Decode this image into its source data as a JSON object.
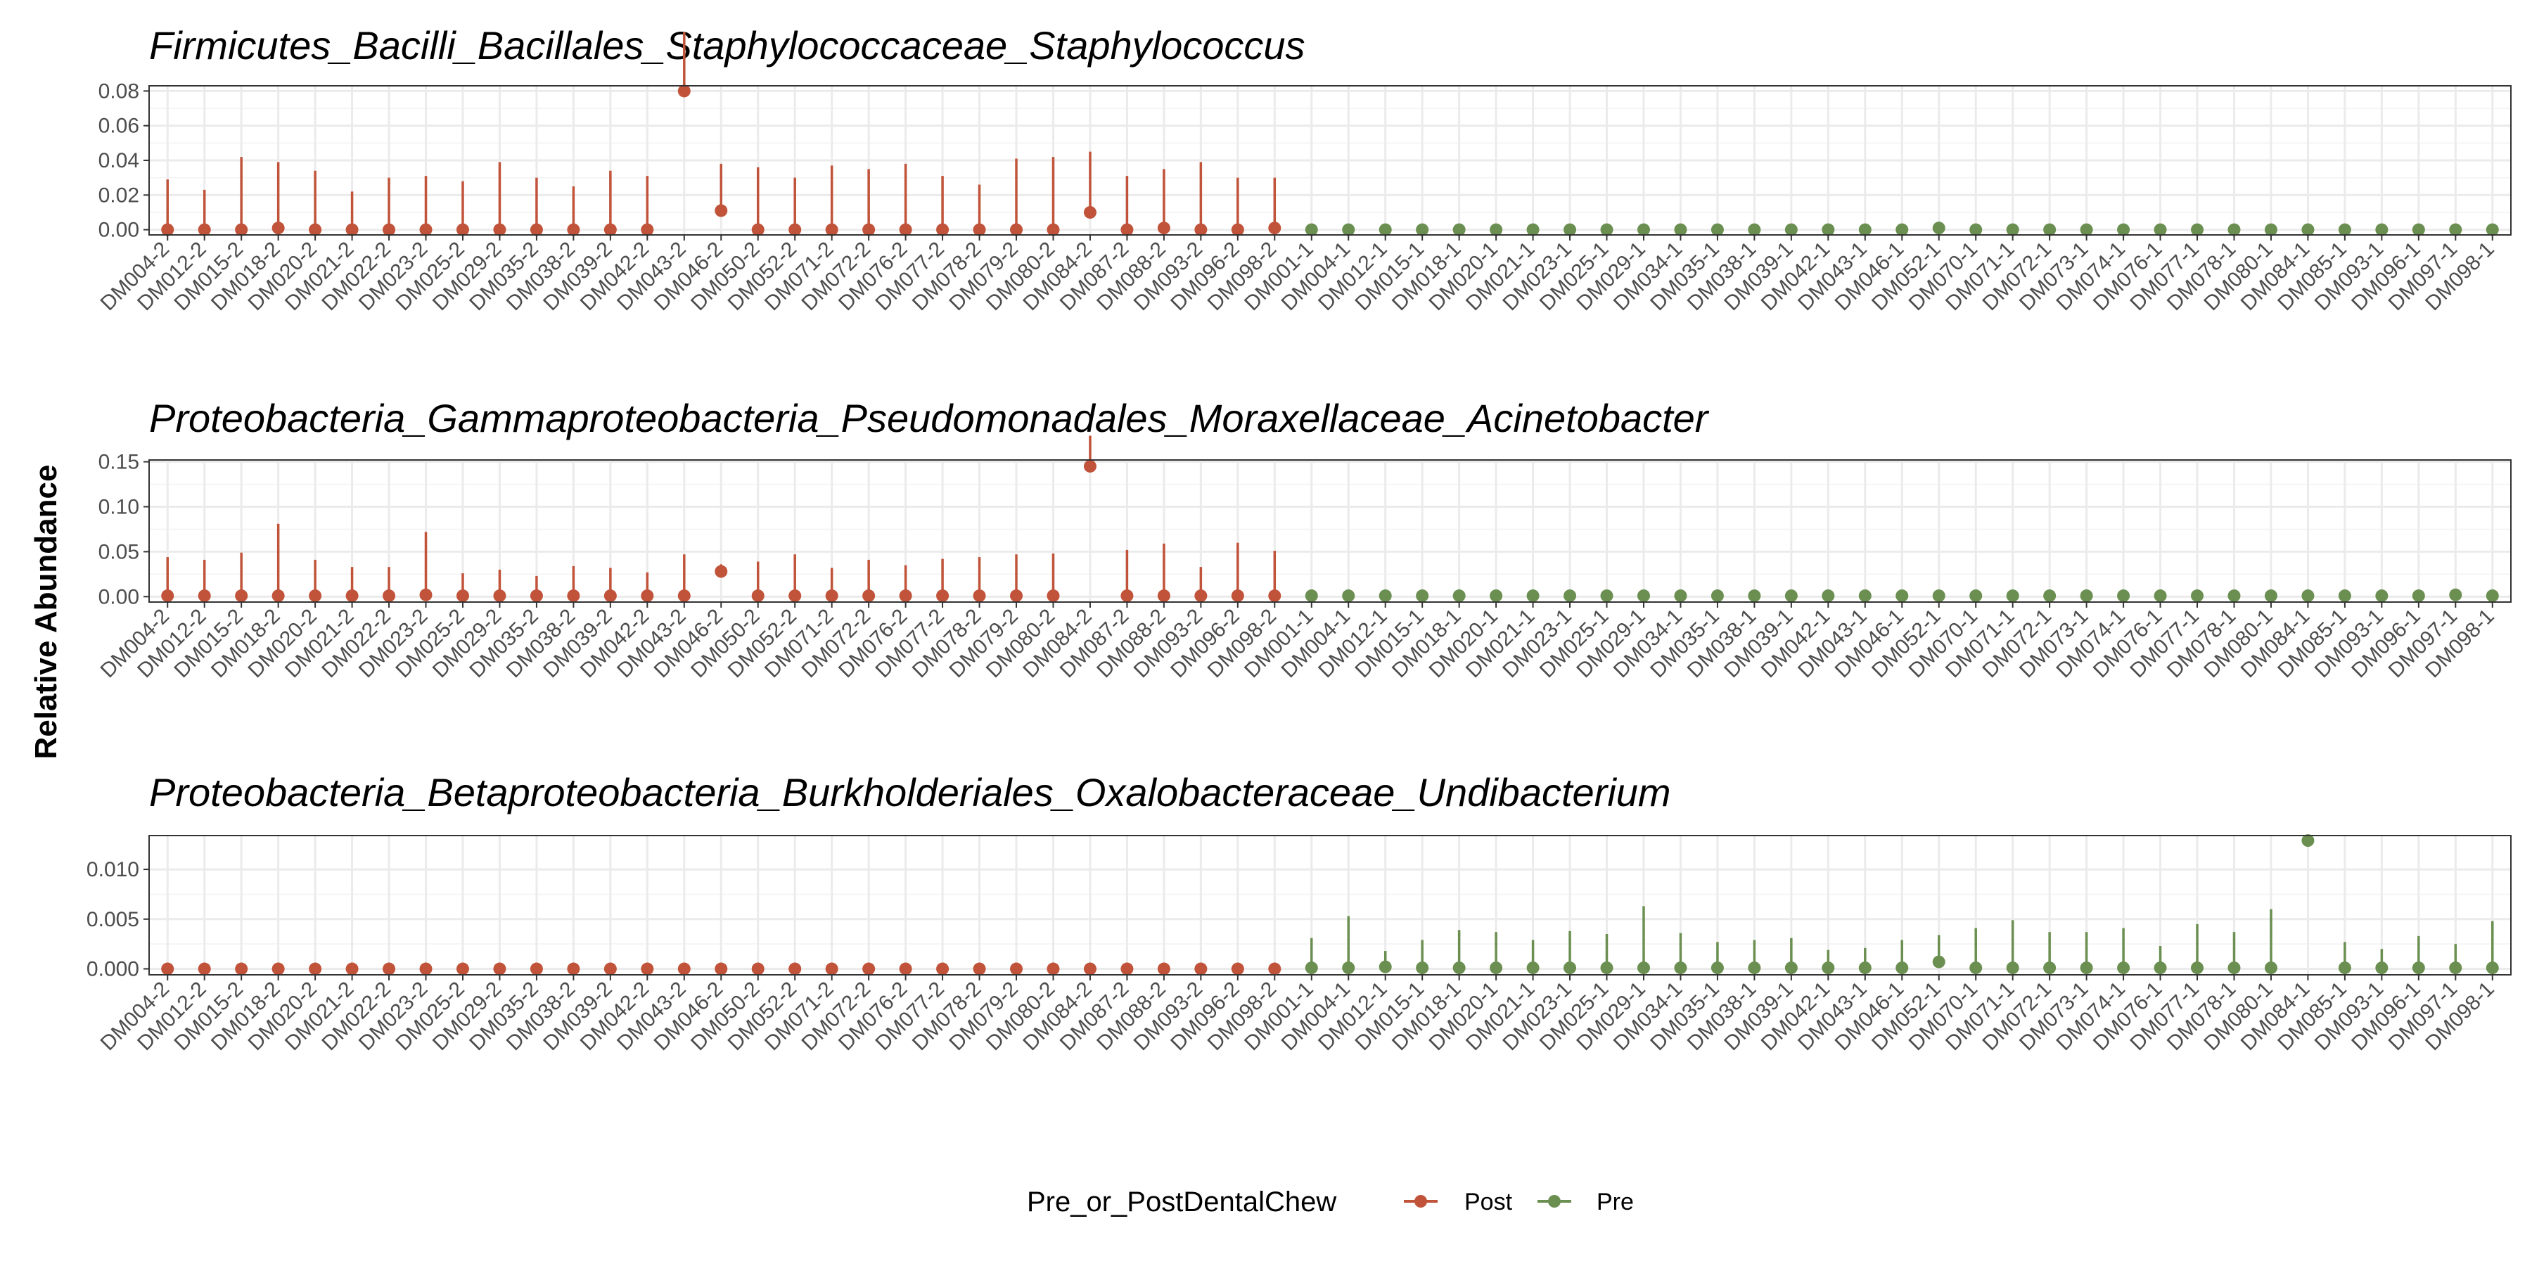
{
  "chart_data": {
    "type": "scatter",
    "ylabel": "Relative Abundance",
    "legend": {
      "title": "Pre_or_PostDentalChew",
      "position": "bottom",
      "entries": [
        {
          "name": "Post",
          "color": "#C0533A"
        },
        {
          "name": "Pre",
          "color": "#6A8F50"
        }
      ]
    },
    "panels": [
      {
        "title": "Firmicutes_Bacilli_Bacillales_Staphylococcaceae_Staphylococcus",
        "ylim": [
          -0.003,
          0.083
        ],
        "yticks": [
          0,
          0.02,
          0.04,
          0.06,
          0.08
        ],
        "ytick_labels": [
          "0.00",
          "0.02",
          "0.04",
          "0.06",
          "0.08"
        ],
        "x": [
          "DM004-2",
          "DM012-2",
          "DM015-2",
          "DM018-2",
          "DM020-2",
          "DM021-2",
          "DM022-2",
          "DM023-2",
          "DM025-2",
          "DM029-2",
          "DM035-2",
          "DM038-2",
          "DM039-2",
          "DM042-2",
          "DM043-2",
          "DM046-2",
          "DM050-2",
          "DM052-2",
          "DM071-2",
          "DM072-2",
          "DM076-2",
          "DM077-2",
          "DM078-2",
          "DM079-2",
          "DM080-2",
          "DM084-2",
          "DM087-2",
          "DM088-2",
          "DM093-2",
          "DM096-2",
          "DM098-2",
          "DM001-1",
          "DM004-1",
          "DM012-1",
          "DM015-1",
          "DM018-1",
          "DM020-1",
          "DM021-1",
          "DM023-1",
          "DM025-1",
          "DM029-1",
          "DM034-1",
          "DM035-1",
          "DM038-1",
          "DM039-1",
          "DM042-1",
          "DM043-1",
          "DM046-1",
          "DM052-1",
          "DM070-1",
          "DM071-1",
          "DM072-1",
          "DM073-1",
          "DM074-1",
          "DM076-1",
          "DM077-1",
          "DM078-1",
          "DM080-1",
          "DM084-1",
          "DM085-1",
          "DM093-1",
          "DM096-1",
          "DM097-1",
          "DM098-1"
        ],
        "group": [
          "Post",
          "Post",
          "Post",
          "Post",
          "Post",
          "Post",
          "Post",
          "Post",
          "Post",
          "Post",
          "Post",
          "Post",
          "Post",
          "Post",
          "Post",
          "Post",
          "Post",
          "Post",
          "Post",
          "Post",
          "Post",
          "Post",
          "Post",
          "Post",
          "Post",
          "Post",
          "Post",
          "Post",
          "Post",
          "Post",
          "Post",
          "Pre",
          "Pre",
          "Pre",
          "Pre",
          "Pre",
          "Pre",
          "Pre",
          "Pre",
          "Pre",
          "Pre",
          "Pre",
          "Pre",
          "Pre",
          "Pre",
          "Pre",
          "Pre",
          "Pre",
          "Pre",
          "Pre",
          "Pre",
          "Pre",
          "Pre",
          "Pre",
          "Pre",
          "Pre",
          "Pre",
          "Pre",
          "Pre",
          "Pre",
          "Pre",
          "Pre",
          "Pre",
          "Pre"
        ],
        "y": [
          0,
          0,
          0,
          0.001,
          0,
          0,
          0,
          0,
          0,
          0,
          0,
          0,
          0,
          0,
          0.08,
          0.011,
          0,
          0,
          0,
          0,
          0,
          0,
          0,
          0,
          0,
          0.01,
          0,
          0.001,
          0,
          0,
          0.001,
          0,
          0,
          0,
          0,
          0,
          0,
          0,
          0,
          0,
          0,
          0,
          0,
          0,
          0,
          0,
          0,
          0,
          0.001,
          0,
          0,
          0,
          0,
          0,
          0,
          0,
          0,
          0,
          0,
          0,
          0,
          0,
          0,
          0
        ],
        "err": [
          0.029,
          0.023,
          0.042,
          0.038,
          0.034,
          0.022,
          0.03,
          0.031,
          0.028,
          0.039,
          0.03,
          0.025,
          0.034,
          0.031,
          0.034,
          0.027,
          0.036,
          0.03,
          0.037,
          0.035,
          0.038,
          0.031,
          0.026,
          0.041,
          0.042,
          0.035,
          0.031,
          0.034,
          0.039,
          0.03,
          0.029,
          0.001,
          0.001,
          0.001,
          0.001,
          0.001,
          0.001,
          0.001,
          0.001,
          0.001,
          0.001,
          0.001,
          0.001,
          0.001,
          0.001,
          0.001,
          0.001,
          0.001,
          0.001,
          0.001,
          0.001,
          0.001,
          0.001,
          0.001,
          0.001,
          0.001,
          0.001,
          0.001,
          0.001,
          0.001,
          0.001,
          0.001,
          0.001,
          0.001
        ]
      },
      {
        "title": "Proteobacteria_Gammaproteobacteria_Pseudomonadales_Moraxellaceae_Acinetobacter",
        "ylim": [
          -0.006,
          0.152
        ],
        "yticks": [
          0,
          0.05,
          0.1,
          0.15
        ],
        "ytick_labels": [
          "0.00",
          "0.05",
          "0.10",
          "0.15"
        ],
        "x": [
          "DM004-2",
          "DM012-2",
          "DM015-2",
          "DM018-2",
          "DM020-2",
          "DM021-2",
          "DM022-2",
          "DM023-2",
          "DM025-2",
          "DM029-2",
          "DM035-2",
          "DM038-2",
          "DM039-2",
          "DM042-2",
          "DM043-2",
          "DM046-2",
          "DM050-2",
          "DM052-2",
          "DM071-2",
          "DM072-2",
          "DM076-2",
          "DM077-2",
          "DM078-2",
          "DM079-2",
          "DM080-2",
          "DM084-2",
          "DM087-2",
          "DM088-2",
          "DM093-2",
          "DM096-2",
          "DM098-2",
          "DM001-1",
          "DM004-1",
          "DM012-1",
          "DM015-1",
          "DM018-1",
          "DM020-1",
          "DM021-1",
          "DM023-1",
          "DM025-1",
          "DM029-1",
          "DM034-1",
          "DM035-1",
          "DM038-1",
          "DM039-1",
          "DM042-1",
          "DM043-1",
          "DM046-1",
          "DM052-1",
          "DM070-1",
          "DM071-1",
          "DM072-1",
          "DM073-1",
          "DM074-1",
          "DM076-1",
          "DM077-1",
          "DM078-1",
          "DM080-1",
          "DM084-1",
          "DM085-1",
          "DM093-1",
          "DM096-1",
          "DM097-1",
          "DM098-1"
        ],
        "group": [
          "Post",
          "Post",
          "Post",
          "Post",
          "Post",
          "Post",
          "Post",
          "Post",
          "Post",
          "Post",
          "Post",
          "Post",
          "Post",
          "Post",
          "Post",
          "Post",
          "Post",
          "Post",
          "Post",
          "Post",
          "Post",
          "Post",
          "Post",
          "Post",
          "Post",
          "Post",
          "Post",
          "Post",
          "Post",
          "Post",
          "Post",
          "Pre",
          "Pre",
          "Pre",
          "Pre",
          "Pre",
          "Pre",
          "Pre",
          "Pre",
          "Pre",
          "Pre",
          "Pre",
          "Pre",
          "Pre",
          "Pre",
          "Pre",
          "Pre",
          "Pre",
          "Pre",
          "Pre",
          "Pre",
          "Pre",
          "Pre",
          "Pre",
          "Pre",
          "Pre",
          "Pre",
          "Pre",
          "Pre",
          "Pre",
          "Pre",
          "Pre",
          "Pre",
          "Pre"
        ],
        "y": [
          0.001,
          0.001,
          0.001,
          0.001,
          0.001,
          0.001,
          0.001,
          0.002,
          0.001,
          0.001,
          0.001,
          0.001,
          0.001,
          0.001,
          0.001,
          0.028,
          0.001,
          0.001,
          0.001,
          0.001,
          0.001,
          0.001,
          0.001,
          0.001,
          0.001,
          0.145,
          0.001,
          0.001,
          0.001,
          0.001,
          0.001,
          0.001,
          0.001,
          0.001,
          0.001,
          0.001,
          0.001,
          0.001,
          0.001,
          0.001,
          0.001,
          0.001,
          0.001,
          0.001,
          0.001,
          0.001,
          0.001,
          0.001,
          0.001,
          0.001,
          0.001,
          0.001,
          0.001,
          0.001,
          0.001,
          0.001,
          0.001,
          0.001,
          0.001,
          0.001,
          0.001,
          0.001,
          0.002,
          0.001
        ],
        "err": [
          0.043,
          0.04,
          0.048,
          0.08,
          0.04,
          0.032,
          0.032,
          0.07,
          0.025,
          0.029,
          0.022,
          0.033,
          0.031,
          0.026,
          0.046,
          0.008,
          0.038,
          0.046,
          0.031,
          0.04,
          0.034,
          0.041,
          0.043,
          0.046,
          0.047,
          0.034,
          0.051,
          0.058,
          0.032,
          0.059,
          0.05,
          0.001,
          0.001,
          0.001,
          0.001,
          0.001,
          0.001,
          0.001,
          0.001,
          0.001,
          0.001,
          0.001,
          0.001,
          0.001,
          0.001,
          0.001,
          0.001,
          0.001,
          0.001,
          0.001,
          0.001,
          0.001,
          0.001,
          0.001,
          0.001,
          0.001,
          0.001,
          0.001,
          0.001,
          0.001,
          0.001,
          0.001,
          0.001,
          0.001
        ]
      },
      {
        "title": "Proteobacteria_Betaproteobacteria_Burkholderiales_Oxalobacteraceae_Undibacterium",
        "ylim": [
          -0.0006,
          0.0134
        ],
        "yticks": [
          0,
          0.005,
          0.01
        ],
        "ytick_labels": [
          "0.000",
          "0.005",
          "0.010"
        ],
        "x": [
          "DM004-2",
          "DM012-2",
          "DM015-2",
          "DM018-2",
          "DM020-2",
          "DM021-2",
          "DM022-2",
          "DM023-2",
          "DM025-2",
          "DM029-2",
          "DM035-2",
          "DM038-2",
          "DM039-2",
          "DM042-2",
          "DM043-2",
          "DM046-2",
          "DM050-2",
          "DM052-2",
          "DM071-2",
          "DM072-2",
          "DM076-2",
          "DM077-2",
          "DM078-2",
          "DM079-2",
          "DM080-2",
          "DM084-2",
          "DM087-2",
          "DM088-2",
          "DM093-2",
          "DM096-2",
          "DM098-2",
          "DM001-1",
          "DM004-1",
          "DM012-1",
          "DM015-1",
          "DM018-1",
          "DM020-1",
          "DM021-1",
          "DM023-1",
          "DM025-1",
          "DM029-1",
          "DM034-1",
          "DM035-1",
          "DM038-1",
          "DM039-1",
          "DM042-1",
          "DM043-1",
          "DM046-1",
          "DM052-1",
          "DM070-1",
          "DM071-1",
          "DM072-1",
          "DM073-1",
          "DM074-1",
          "DM076-1",
          "DM077-1",
          "DM078-1",
          "DM080-1",
          "DM084-1",
          "DM085-1",
          "DM093-1",
          "DM096-1",
          "DM097-1",
          "DM098-1"
        ],
        "group": [
          "Post",
          "Post",
          "Post",
          "Post",
          "Post",
          "Post",
          "Post",
          "Post",
          "Post",
          "Post",
          "Post",
          "Post",
          "Post",
          "Post",
          "Post",
          "Post",
          "Post",
          "Post",
          "Post",
          "Post",
          "Post",
          "Post",
          "Post",
          "Post",
          "Post",
          "Post",
          "Post",
          "Post",
          "Post",
          "Post",
          "Post",
          "Pre",
          "Pre",
          "Pre",
          "Pre",
          "Pre",
          "Pre",
          "Pre",
          "Pre",
          "Pre",
          "Pre",
          "Pre",
          "Pre",
          "Pre",
          "Pre",
          "Pre",
          "Pre",
          "Pre",
          "Pre",
          "Pre",
          "Pre",
          "Pre",
          "Pre",
          "Pre",
          "Pre",
          "Pre",
          "Pre",
          "Pre",
          "Pre",
          "Pre",
          "Pre",
          "Pre",
          "Pre",
          "Pre"
        ],
        "y": [
          0,
          0,
          0,
          0,
          0,
          0,
          0,
          0,
          0,
          0,
          0,
          0,
          0,
          0,
          0,
          0,
          0,
          0,
          0,
          0,
          0,
          0,
          0,
          0,
          0,
          0,
          0,
          0,
          0,
          0,
          0,
          0.0001,
          0.0001,
          0.0002,
          0.0001,
          0.0001,
          0.0001,
          0.0001,
          0.0001,
          0.0001,
          0.0001,
          0.0001,
          0.0001,
          0.0001,
          0.0001,
          0.0001,
          0.0001,
          0.0001,
          0.0007,
          0.0001,
          0.0001,
          0.0001,
          0.0001,
          0.0001,
          0.0001,
          0.0001,
          0.0001,
          0.0001,
          0.0129,
          0.0001,
          0.0001,
          0.0001,
          0.0001,
          0.0001
        ],
        "err": [
          0,
          0,
          0,
          0,
          0,
          0,
          0,
          0,
          0,
          0,
          0,
          0,
          0,
          0,
          0,
          0,
          0,
          0,
          0,
          0,
          0,
          0,
          0,
          0,
          0,
          0,
          0,
          0,
          0,
          0,
          0,
          0.003,
          0.0052,
          0.0016,
          0.0028,
          0.0038,
          0.0036,
          0.0028,
          0.0037,
          0.0034,
          0.0062,
          0.0035,
          0.0026,
          0.0028,
          0.003,
          0.0018,
          0.002,
          0.0028,
          0.0027,
          0.004,
          0.0048,
          0.0036,
          0.0036,
          0.004,
          0.0022,
          0.0044,
          0.0036,
          0.0059,
          0.0004,
          0.0026,
          0.0019,
          0.0032,
          0.0024,
          0.0047
        ]
      }
    ]
  }
}
